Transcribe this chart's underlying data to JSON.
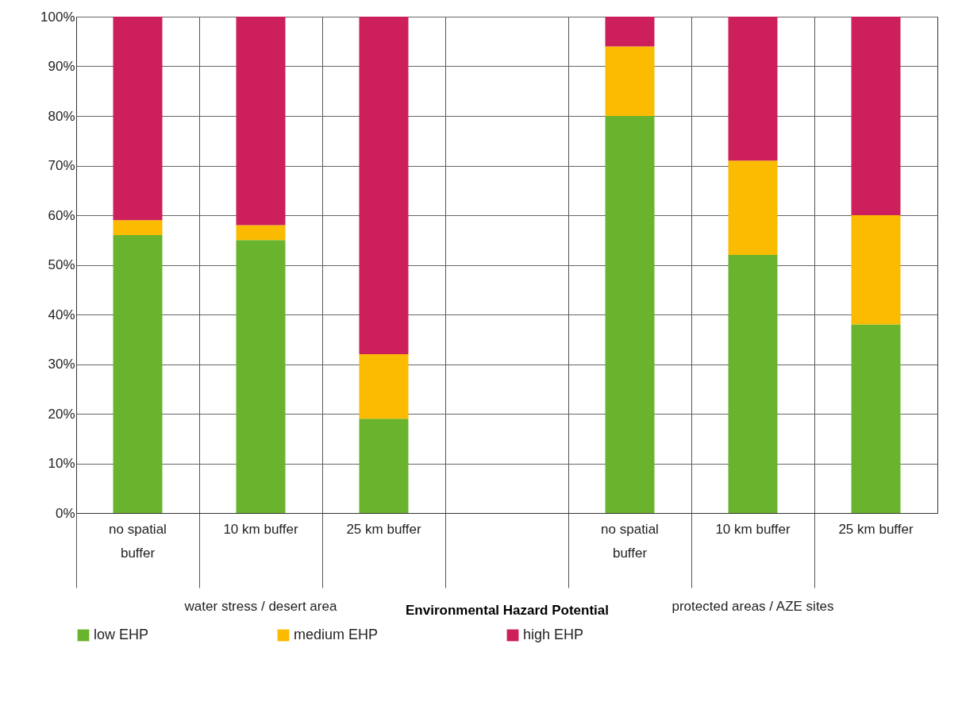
{
  "chart_data": {
    "type": "bar",
    "stacked": true,
    "xlabel": "Environmental Hazard Potential",
    "categories": [
      "no spatial buffer",
      "10 km buffer",
      "25 km buffer",
      null,
      "no spatial buffer",
      "10 km buffer",
      "25 km buffer"
    ],
    "series": [
      {
        "name": "low EHP",
        "color": "#6ab42d",
        "values": [
          56,
          55,
          19,
          null,
          80,
          52,
          38
        ]
      },
      {
        "name": "medium EHP",
        "color": "#fbbb00",
        "values": [
          3,
          3,
          13,
          null,
          14,
          19,
          22
        ]
      },
      {
        "name": "high EHP",
        "color": "#cc1f5b",
        "values": [
          41,
          42,
          68,
          null,
          6,
          29,
          40
        ]
      }
    ],
    "ylim": [
      0,
      100
    ],
    "yticks": [
      {
        "value": 0,
        "label": "0%"
      },
      {
        "value": 10,
        "label": "10%"
      },
      {
        "value": 20,
        "label": "20%"
      },
      {
        "value": 30,
        "label": "30%"
      },
      {
        "value": 40,
        "label": "40%"
      },
      {
        "value": 50,
        "label": "50%"
      },
      {
        "value": 60,
        "label": "60%"
      },
      {
        "value": 70,
        "label": "70%"
      },
      {
        "value": 80,
        "label": "80%"
      },
      {
        "value": 90,
        "label": "90%"
      },
      {
        "value": 100,
        "label": "100%"
      }
    ],
    "annotations": [
      "water stress / desert area",
      "protected areas / AZE sites"
    ],
    "grid": true,
    "legend": "bottom"
  }
}
